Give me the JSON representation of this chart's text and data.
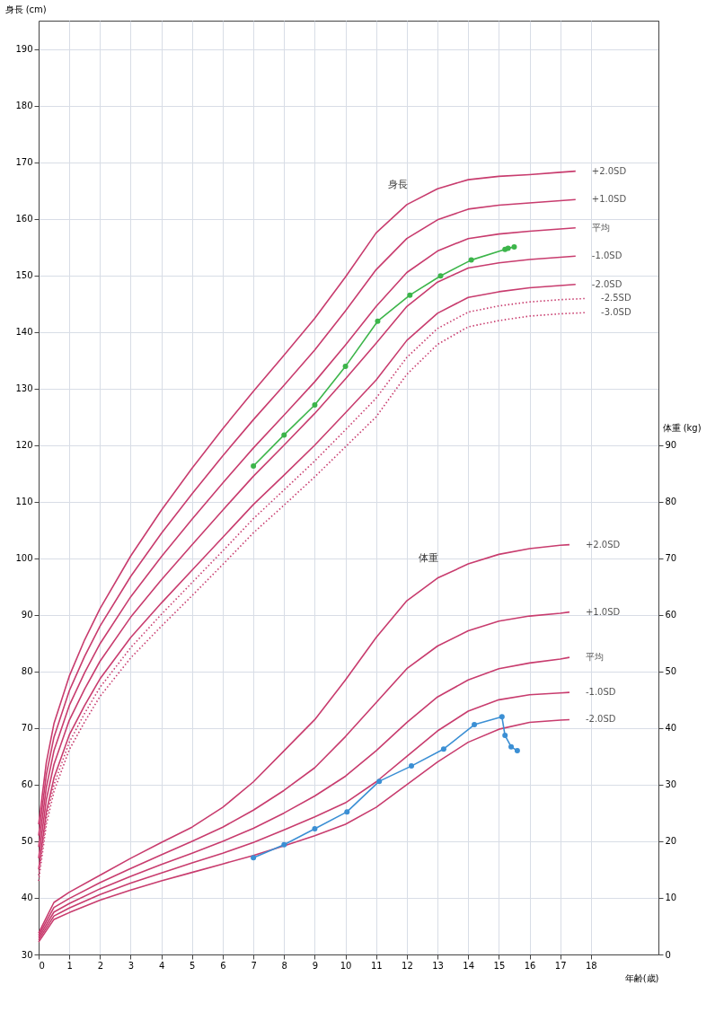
{
  "chart_data": {
    "type": "line",
    "xlabel": "年齢(歳)",
    "ylabel": "身長 (cm)",
    "y2label": "体重 (kg)",
    "xlim": [
      0,
      20.2
    ],
    "xticks": [
      0,
      1,
      2,
      3,
      4,
      5,
      6,
      7,
      8,
      9,
      10,
      11,
      12,
      13,
      14,
      15,
      16,
      17,
      18
    ],
    "ylim": [
      30,
      195
    ],
    "yticks": [
      30,
      40,
      50,
      60,
      70,
      80,
      90,
      100,
      110,
      120,
      130,
      140,
      150,
      160,
      170,
      180,
      190
    ],
    "y2lim": [
      0,
      165
    ],
    "y2ticks": [
      0,
      10,
      20,
      30,
      40,
      50,
      60,
      70,
      80,
      90
    ],
    "grid": true,
    "legend": false,
    "annotations": [
      "身長",
      "体重"
    ],
    "series": [
      {
        "name": "+2.0SD",
        "color": "#c83c6e",
        "line_style": "solid",
        "x": [
          0,
          0.25,
          0.5,
          1,
          1.5,
          2,
          3,
          4,
          5,
          6,
          7,
          8,
          9,
          10,
          11,
          12,
          13,
          14,
          15,
          16,
          17,
          17.5
        ],
        "values": [
          53.0,
          63.9,
          70.8,
          79.2,
          85.6,
          91.1,
          100.4,
          108.5,
          115.9,
          122.9,
          129.5,
          135.9,
          142.4,
          149.7,
          157.5,
          162.5,
          165.3,
          166.9,
          167.5,
          167.8,
          168.2,
          168.4
        ]
      },
      {
        "name": "+1.0SD",
        "color": "#c83c6e",
        "line_style": "solid",
        "x": [
          0,
          0.25,
          0.5,
          1,
          1.5,
          2,
          3,
          4,
          5,
          6,
          7,
          8,
          9,
          10,
          11,
          12,
          13,
          14,
          15,
          16,
          17,
          17.5
        ],
        "values": [
          51.0,
          61.7,
          68.4,
          76.6,
          82.7,
          88.0,
          96.8,
          104.4,
          111.4,
          118.1,
          124.5,
          130.6,
          136.8,
          143.7,
          151.0,
          156.5,
          159.8,
          161.7,
          162.4,
          162.8,
          163.2,
          163.4
        ]
      },
      {
        "name": "平均",
        "color": "#c83c6e",
        "line_style": "solid",
        "x": [
          0,
          0.25,
          0.5,
          1,
          1.5,
          2,
          3,
          4,
          5,
          6,
          7,
          8,
          9,
          10,
          11,
          12,
          13,
          14,
          15,
          16,
          17,
          17.5
        ],
        "values": [
          49.0,
          59.5,
          66.0,
          74.0,
          79.8,
          84.9,
          93.2,
          100.3,
          106.9,
          113.3,
          119.5,
          125.3,
          131.2,
          137.7,
          144.5,
          150.5,
          154.3,
          156.5,
          157.3,
          157.8,
          158.2,
          158.4
        ]
      },
      {
        "name": "-1.0SD",
        "color": "#c83c6e",
        "line_style": "solid",
        "x": [
          0,
          0.25,
          0.5,
          1,
          1.5,
          2,
          3,
          4,
          5,
          6,
          7,
          8,
          9,
          10,
          11,
          12,
          13,
          14,
          15,
          16,
          17,
          17.5
        ],
        "values": [
          47.0,
          57.3,
          63.6,
          71.4,
          76.9,
          81.8,
          89.6,
          96.2,
          102.4,
          108.5,
          114.5,
          120.0,
          125.6,
          131.7,
          138.0,
          144.5,
          148.8,
          151.3,
          152.2,
          152.8,
          153.2,
          153.4
        ]
      },
      {
        "name": "-2.0SD",
        "color": "#c83c6e",
        "line_style": "solid",
        "x": [
          0,
          0.25,
          0.5,
          1,
          1.5,
          2,
          3,
          4,
          5,
          6,
          7,
          8,
          9,
          10,
          11,
          12,
          13,
          14,
          15,
          16,
          17,
          17.5
        ],
        "values": [
          45.0,
          55.1,
          61.2,
          68.8,
          74.0,
          78.7,
          86.0,
          92.1,
          97.9,
          103.7,
          109.5,
          114.7,
          120.0,
          125.7,
          131.5,
          138.5,
          143.3,
          146.1,
          147.1,
          147.8,
          148.2,
          148.4
        ]
      },
      {
        "name": "-2.5SD",
        "color": "#c83c6e",
        "line_style": "dotted",
        "x": [
          0,
          0.25,
          0.5,
          1,
          1.5,
          2,
          3,
          4,
          5,
          6,
          7,
          8,
          9,
          10,
          11,
          12,
          13,
          14,
          15,
          16,
          17,
          17.8
        ],
        "values": [
          44.0,
          54.0,
          60.0,
          67.5,
          72.6,
          77.2,
          84.2,
          90.1,
          95.7,
          101.3,
          107.0,
          112.1,
          117.2,
          122.7,
          128.3,
          135.5,
          140.6,
          143.5,
          144.6,
          145.3,
          145.7,
          145.9
        ]
      },
      {
        "name": "-3.0SD",
        "color": "#c83c6e",
        "line_style": "dotted",
        "x": [
          0,
          0.25,
          0.5,
          1,
          1.5,
          2,
          3,
          4,
          5,
          6,
          7,
          8,
          9,
          10,
          11,
          12,
          13,
          14,
          15,
          16,
          17,
          17.8
        ],
        "values": [
          43.0,
          52.9,
          58.8,
          66.2,
          71.1,
          75.6,
          82.4,
          88.0,
          93.4,
          98.9,
          104.5,
          109.4,
          114.4,
          119.7,
          125.0,
          132.5,
          137.8,
          140.9,
          142.0,
          142.8,
          143.2,
          143.4
        ]
      },
      {
        "color": "#3cb54a",
        "line_style": "solid",
        "marker": "circle",
        "x": [
          7.0,
          8.0,
          9.0,
          10.0,
          11.05,
          12.1,
          13.1,
          14.1,
          15.2,
          15.3,
          15.5
        ],
        "values": [
          116.3,
          121.8,
          127.1,
          133.9,
          141.9,
          146.5,
          149.9,
          152.7,
          154.6,
          154.8,
          155.0
        ]
      },
      {
        "name": "+2.0SD",
        "color": "#c83c6e",
        "line_style": "solid",
        "axis": "y2",
        "x": [
          0,
          0.5,
          1,
          2,
          3,
          4,
          5,
          6,
          7,
          8,
          9,
          10,
          11,
          12,
          13,
          14,
          15,
          16,
          17,
          17.3
        ],
        "values": [
          3.8,
          9.2,
          11.0,
          14.0,
          17.0,
          19.8,
          22.5,
          26.0,
          30.5,
          36.0,
          41.5,
          48.5,
          56.0,
          62.5,
          66.5,
          69.0,
          70.7,
          71.7,
          72.3,
          72.4
        ]
      },
      {
        "name": "+1.0SD",
        "color": "#c83c6e",
        "line_style": "solid",
        "axis": "y2",
        "x": [
          0,
          0.5,
          1,
          2,
          3,
          4,
          5,
          6,
          7,
          8,
          9,
          10,
          11,
          12,
          13,
          14,
          15,
          16,
          17,
          17.3
        ],
        "values": [
          3.4,
          8.3,
          9.9,
          12.7,
          15.2,
          17.6,
          20.0,
          22.5,
          25.5,
          29.0,
          33.0,
          38.5,
          44.5,
          50.5,
          54.5,
          57.2,
          58.9,
          59.8,
          60.3,
          60.5
        ]
      },
      {
        "name": "平均",
        "color": "#c83c6e",
        "line_style": "solid",
        "axis": "y2",
        "x": [
          0,
          0.5,
          1,
          2,
          3,
          4,
          5,
          6,
          7,
          8,
          9,
          10,
          11,
          12,
          13,
          14,
          15,
          16,
          17,
          17.3
        ],
        "values": [
          3.0,
          7.5,
          9.0,
          11.6,
          13.8,
          15.9,
          17.9,
          20.0,
          22.3,
          25.0,
          28.0,
          31.5,
          36.0,
          41.0,
          45.5,
          48.5,
          50.5,
          51.5,
          52.2,
          52.5
        ]
      },
      {
        "name": "-1.0SD",
        "color": "#c83c6e",
        "line_style": "solid",
        "axis": "y2",
        "x": [
          0,
          0.5,
          1,
          2,
          3,
          4,
          5,
          6,
          7,
          8,
          9,
          10,
          11,
          12,
          13,
          14,
          15,
          16,
          17,
          17.3
        ],
        "values": [
          2.6,
          6.8,
          8.2,
          10.6,
          12.6,
          14.4,
          16.2,
          17.9,
          19.8,
          22.0,
          24.3,
          26.8,
          30.5,
          35.0,
          39.5,
          43.0,
          45.0,
          45.9,
          46.2,
          46.3
        ]
      },
      {
        "name": "-2.0SD",
        "color": "#c83c6e",
        "line_style": "solid",
        "axis": "y2",
        "x": [
          0,
          0.5,
          1,
          2,
          3,
          4,
          5,
          6,
          7,
          8,
          9,
          10,
          11,
          12,
          13,
          14,
          15,
          16,
          17,
          17.3
        ],
        "values": [
          2.2,
          6.2,
          7.4,
          9.6,
          11.4,
          13.0,
          14.5,
          16.0,
          17.5,
          19.2,
          21.0,
          23.0,
          26.0,
          30.0,
          34.0,
          37.5,
          39.8,
          41.0,
          41.4,
          41.5
        ]
      },
      {
        "color": "#3b8fd4",
        "line_style": "solid",
        "marker": "circle",
        "axis": "y2",
        "x": [
          7.0,
          8.0,
          9.0,
          10.05,
          11.1,
          12.15,
          13.2,
          14.2,
          15.1,
          15.2,
          15.4,
          15.6
        ],
        "values": [
          17.1,
          19.4,
          22.2,
          25.2,
          30.6,
          33.3,
          36.3,
          40.6,
          42.0,
          38.7,
          36.7,
          36.0
        ]
      }
    ]
  }
}
